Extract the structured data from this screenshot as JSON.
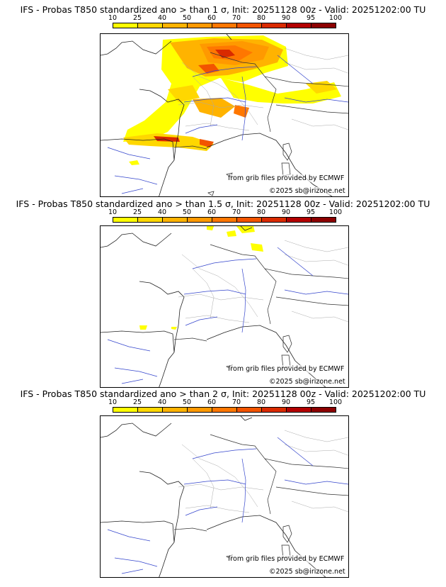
{
  "color_scale": {
    "ticks": [
      "10",
      "25",
      "40",
      "50",
      "60",
      "70",
      "80",
      "90",
      "95",
      "100"
    ],
    "colors": [
      "#ffff00",
      "#ffd700",
      "#ffb300",
      "#ff9900",
      "#ff7700",
      "#f25400",
      "#d92a00",
      "#b30000",
      "#8c0000"
    ]
  },
  "credit": "from grib files provided by ECMWF",
  "copyright": "©2025 sb@irizone.net",
  "panels": [
    {
      "title": "IFS - Probas T850  standardized ano > than 1 σ, Init: 20251128 00z - Valid: 20251202:00 TU",
      "threshold": "1 σ"
    },
    {
      "title": "IFS - Probas T850  standardized ano > than 1.5 σ, Init: 20251128 00z - Valid: 20251202:00 TU",
      "threshold": "1.5 σ"
    },
    {
      "title": "IFS - Probas T850  standardized ano > than 2 σ, Init: 20251128 00z - Valid: 20251202:00 TU",
      "threshold": "2 σ"
    }
  ]
}
